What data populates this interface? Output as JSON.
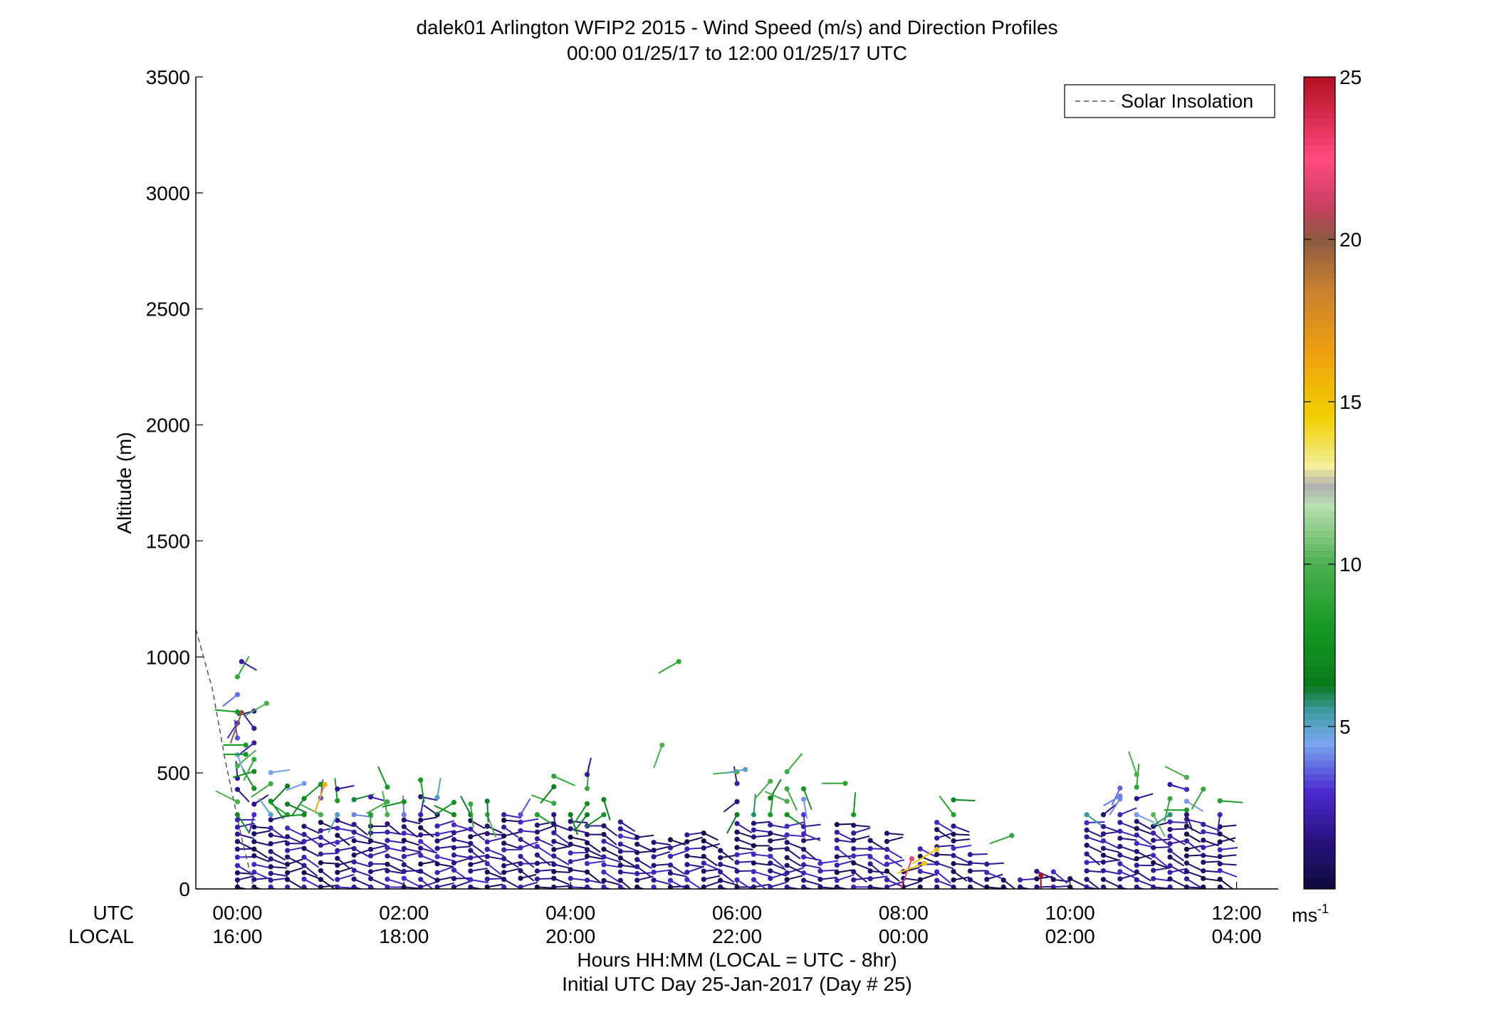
{
  "chart_data": {
    "type": "scatter",
    "title": "dalek01 Arlington WFIP2 2015 - Wind Speed (m/s) and Direction Profiles",
    "subtitle": "00:00 01/25/17 to 12:00 01/25/17  UTC",
    "ylabel": "Altitude (m)",
    "xlabel": "Hours HH:MM  (LOCAL = UTC - 8hr)",
    "xlabel2": "Initial UTC Day 25-Jan-2017 (Day # 25)",
    "row_label_utc": "UTC",
    "row_label_local": "LOCAL",
    "x_ticks_utc": [
      "00:00",
      "02:00",
      "04:00",
      "06:00",
      "08:00",
      "10:00",
      "12:00"
    ],
    "x_ticks_local": [
      "16:00",
      "18:00",
      "20:00",
      "22:00",
      "00:00",
      "02:00",
      "04:00"
    ],
    "x_tick_hours": [
      0,
      2,
      4,
      6,
      8,
      10,
      12
    ],
    "xlim_hours": [
      -0.5,
      12.5
    ],
    "ylim": [
      0,
      3500
    ],
    "y_ticks": [
      "0",
      "500",
      "1000",
      "1500",
      "2000",
      "2500",
      "3000",
      "3500"
    ],
    "legend": {
      "label": "Solar Insolation",
      "position": "top-right"
    },
    "colorbar": {
      "unit_label": "ms",
      "unit_exponent": "-1",
      "min": 0,
      "max": 25,
      "ticks": [
        "5",
        "10",
        "15",
        "20",
        "25"
      ],
      "tick_values": [
        5,
        10,
        15,
        20,
        25
      ],
      "gradient": [
        {
          "v": 0,
          "c": "#0c0c3a"
        },
        {
          "v": 1.5,
          "c": "#2a1280"
        },
        {
          "v": 3,
          "c": "#4b2ad0"
        },
        {
          "v": 4.5,
          "c": "#7aa8f0"
        },
        {
          "v": 5.5,
          "c": "#3a9aa0"
        },
        {
          "v": 6.3,
          "c": "#0a7a1a"
        },
        {
          "v": 8,
          "c": "#149a24"
        },
        {
          "v": 10,
          "c": "#4caf50"
        },
        {
          "v": 11.8,
          "c": "#b8e0b0"
        },
        {
          "v": 12.4,
          "c": "#b0b0b0"
        },
        {
          "v": 13,
          "c": "#f4ef9a"
        },
        {
          "v": 14.5,
          "c": "#f0d000"
        },
        {
          "v": 16.5,
          "c": "#f0a010"
        },
        {
          "v": 18.5,
          "c": "#c88030"
        },
        {
          "v": 20,
          "c": "#8a5a40"
        },
        {
          "v": 21,
          "c": "#c84060"
        },
        {
          "v": 22.5,
          "c": "#ff4a80"
        },
        {
          "v": 25,
          "c": "#b01020"
        }
      ]
    },
    "solar_insolation": [
      [
        -0.5,
        1120
      ],
      [
        -0.3,
        860
      ],
      [
        -0.15,
        560
      ],
      [
        0.05,
        220
      ],
      [
        0.2,
        0
      ]
    ],
    "profile_times_hours": [
      0.0,
      0.2,
      0.4,
      0.6,
      0.8,
      1.0,
      1.2,
      1.4,
      1.6,
      1.8,
      2.0,
      2.2,
      2.4,
      2.6,
      2.8,
      3.0,
      3.2,
      3.4,
      3.6,
      3.8,
      4.0,
      4.2,
      4.4,
      4.6,
      4.8,
      5.0,
      5.2,
      5.4,
      5.6,
      5.8,
      6.0,
      6.2,
      6.4,
      6.6,
      6.8,
      7.0,
      7.2,
      7.4,
      7.6,
      7.8,
      8.0,
      8.2,
      8.4,
      8.6,
      8.8,
      9.0,
      9.2,
      9.4,
      9.6,
      9.8,
      10.0,
      10.2,
      10.4,
      10.6,
      10.8,
      11.0,
      11.2,
      11.4,
      11.6,
      11.8
    ],
    "profile_top_m": [
      940,
      800,
      520,
      510,
      490,
      460,
      460,
      440,
      430,
      470,
      420,
      500,
      400,
      380,
      420,
      400,
      360,
      340,
      330,
      500,
      360,
      520,
      400,
      310,
      240,
      220,
      230,
      260,
      250,
      180,
      520,
      390,
      480,
      520,
      450,
      120,
      310,
      320,
      220,
      260,
      90,
      180,
      300,
      440,
      160,
      120,
      40,
      60,
      80,
      90,
      60,
      360,
      380,
      460,
      500,
      360,
      500,
      520,
      300,
      430
    ],
    "notable_barbs": [
      {
        "t": 0.05,
        "alt": 980,
        "speed": 2,
        "dir": 120
      },
      {
        "t": 0.05,
        "alt": 760,
        "speed": 20,
        "dir": 200
      },
      {
        "t": 0.1,
        "alt": 620,
        "speed": 8,
        "dir": 270
      },
      {
        "t": 0.1,
        "alt": 580,
        "speed": 8,
        "dir": 270
      },
      {
        "t": 0.35,
        "alt": 800,
        "speed": 10,
        "dir": 240
      },
      {
        "t": 1.05,
        "alt": 450,
        "speed": 16,
        "dir": 200
      },
      {
        "t": 5.3,
        "alt": 980,
        "speed": 9,
        "dir": 240
      },
      {
        "t": 5.1,
        "alt": 620,
        "speed": 10,
        "dir": 200
      },
      {
        "t": 6.1,
        "alt": 515,
        "speed": 5,
        "dir": 260
      },
      {
        "t": 7.3,
        "alt": 455,
        "speed": 9,
        "dir": 270
      },
      {
        "t": 8.1,
        "alt": 130,
        "speed": 22,
        "dir": 200
      },
      {
        "t": 8.4,
        "alt": 170,
        "speed": 15,
        "dir": 240
      },
      {
        "t": 8.25,
        "alt": 110,
        "speed": 15,
        "dir": 250
      },
      {
        "t": 9.3,
        "alt": 230,
        "speed": 9,
        "dir": 250
      },
      {
        "t": 9.65,
        "alt": 60,
        "speed": 25,
        "dir": 180
      },
      {
        "t": 10.6,
        "alt": 400,
        "speed": 4,
        "dir": 240
      },
      {
        "t": 11.6,
        "alt": 430,
        "speed": 9,
        "dir": 210
      },
      {
        "t": 11.4,
        "alt": 340,
        "speed": 8,
        "dir": 270
      }
    ]
  }
}
